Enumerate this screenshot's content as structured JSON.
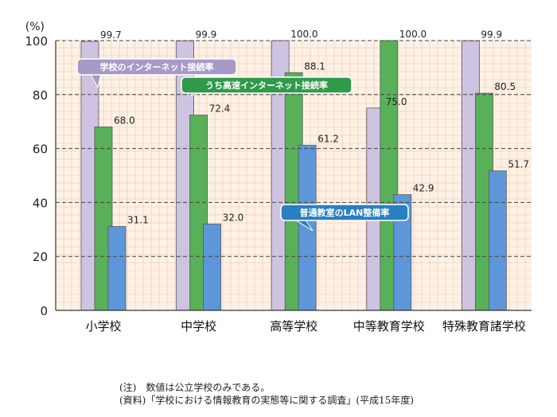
{
  "chart_data": {
    "type": "bar",
    "ylabel": "(%)",
    "ylim": [
      0,
      100
    ],
    "yticks": [
      0,
      20,
      40,
      60,
      80,
      100
    ],
    "categories": [
      "小学校",
      "中学校",
      "高等学校",
      "中等教育学校",
      "特殊教育諸学校"
    ],
    "series": [
      {
        "name": "学校のインターネット接続率",
        "values": [
          99.7,
          99.9,
          100.0,
          75.0,
          99.9
        ],
        "labels": [
          "99.7",
          "99.9",
          "100.0",
          "75.0",
          "99.9"
        ]
      },
      {
        "name": "うち高速インターネット接続率",
        "values": [
          68.0,
          72.4,
          88.1,
          100.0,
          80.5
        ],
        "labels": [
          "68.0",
          "72.4",
          "88.1",
          "100.0",
          "80.5"
        ]
      },
      {
        "name": "普通教室のLAN整備率",
        "values": [
          31.1,
          32.0,
          61.2,
          42.9,
          51.7
        ],
        "labels": [
          "31.1",
          "32.0",
          "61.2",
          "42.9",
          "51.7"
        ]
      }
    ],
    "grid": true,
    "legend": "callouts"
  },
  "colors": {
    "background": "#fdf1e6",
    "grid": "#f0c8a8",
    "series": [
      "#cfc3e2",
      "#58b058",
      "#5d96d9"
    ],
    "callouts": [
      "#a89ac8",
      "#2f9a4a",
      "#2a7fc0"
    ]
  },
  "notes": [
    "(注)　数値は公立学校のみである。",
    "(資料)「学校における情報教育の実態等に関する調査」(平成15年度)"
  ]
}
